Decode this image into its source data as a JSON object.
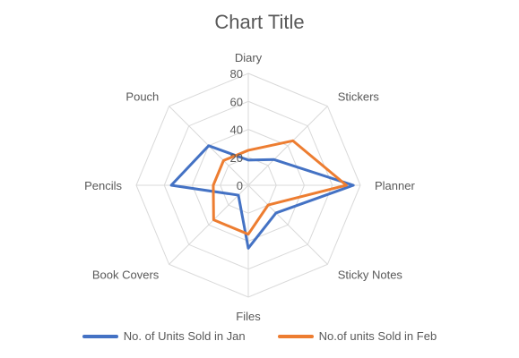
{
  "chart_data": {
    "type": "radar",
    "title": "Chart Title",
    "categories": [
      "Diary",
      "Stickers",
      "Planner",
      "Sticky Notes",
      "Files",
      "Book Covers",
      "Pencils",
      "Pouch"
    ],
    "series": [
      {
        "name": "No. of Units Sold in Jan",
        "color": "#4472C4",
        "values": [
          18,
          26,
          75,
          28,
          45,
          10,
          55,
          40
        ]
      },
      {
        "name": "No.of units Sold in Feb",
        "color": "#ED7D31",
        "values": [
          25,
          45,
          70,
          20,
          35,
          35,
          25,
          25
        ]
      }
    ],
    "rlim": [
      0,
      80
    ],
    "ticks": [
      0,
      20,
      40,
      60,
      80
    ],
    "legend": "bottom",
    "grid": true
  }
}
